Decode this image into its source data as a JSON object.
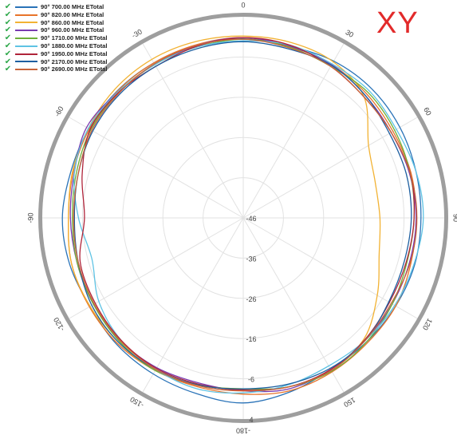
{
  "plane_label": "XY",
  "colors": {
    "grid": "#e2e2e2",
    "rim": "#9e9e9e",
    "tick_text": "#444444",
    "check": "#2ea84a",
    "plane_label": "#e22a2a"
  },
  "legend": [
    {
      "check_icon": "checkmark-icon",
      "label": "90° 700.00 MHz ETotal",
      "color": "#2a73b8"
    },
    {
      "check_icon": "checkmark-icon",
      "label": "90° 820.00 MHz ETotal",
      "color": "#e8742a"
    },
    {
      "check_icon": "checkmark-icon",
      "label": "90° 860.00 MHz ETotal",
      "color": "#f2b233"
    },
    {
      "check_icon": "checkmark-icon",
      "label": "90° 960.00 MHz ETotal",
      "color": "#7a3bb0"
    },
    {
      "check_icon": "checkmark-icon",
      "label": "90° 1710.00 MHz ETotal",
      "color": "#6fb03a"
    },
    {
      "check_icon": "checkmark-icon",
      "label": "90° 1880.00 MHz ETotal",
      "color": "#5fc3e4"
    },
    {
      "check_icon": "checkmark-icon",
      "label": "90° 1950.00 MHz ETotal",
      "color": "#b0243a"
    },
    {
      "check_icon": "checkmark-icon",
      "label": "90° 2170.00 MHz ETotal",
      "color": "#1e5fa0"
    },
    {
      "check_icon": "checkmark-icon",
      "label": "90° 2690.00 MHz ETotal",
      "color": "#c8643a"
    }
  ],
  "chart_data": {
    "type": "polar-line",
    "radial_axis": {
      "range": [
        -46,
        4
      ],
      "ticks": [
        "-46",
        "-36",
        "-26",
        "-16",
        "-6",
        "4"
      ]
    },
    "angular_axis": {
      "ticks": [
        "0",
        "30",
        "60",
        "90",
        "120",
        "150",
        "-180",
        "-150",
        "-120",
        "-90",
        "-60",
        "-30"
      ],
      "ticks_deg": [
        0,
        30,
        60,
        90,
        120,
        150,
        180,
        210,
        240,
        270,
        300,
        330
      ]
    },
    "grid": true,
    "series": [
      {
        "name": "90° 700.00 MHz ETotal",
        "color": "#2a73b8",
        "theta": [
          0,
          15,
          30,
          45,
          60,
          75,
          90,
          105,
          120,
          135,
          150,
          165,
          180,
          195,
          210,
          225,
          240,
          255,
          270,
          285,
          300,
          315,
          330,
          345
        ],
        "r": [
          -1.5,
          -1.8,
          -1.0,
          -0.7,
          -1.0,
          -1.5,
          -1.8,
          -1.8,
          -2.2,
          -2.5,
          -2.5,
          -1.2,
          0.0,
          -0.8,
          -1.2,
          -1.5,
          -2.0,
          -1.3,
          -1.0,
          -1.6,
          -1.6,
          -1.5,
          -1.5,
          -1.5
        ]
      },
      {
        "name": "90° 820.00 MHz ETotal",
        "color": "#e8742a",
        "theta": [
          0,
          15,
          30,
          45,
          60,
          75,
          90,
          105,
          120,
          135,
          150,
          165,
          180,
          195,
          210,
          225,
          240,
          255,
          270,
          285,
          300,
          315,
          330,
          345
        ],
        "r": [
          -1.2,
          -1.8,
          -2.0,
          -2.5,
          -3.0,
          -2.8,
          -3.0,
          -2.8,
          -2.2,
          -2.2,
          -1.8,
          -1.5,
          -2.2,
          -2.5,
          -2.2,
          -1.8,
          -1.8,
          -1.8,
          -2.5,
          -2.2,
          -1.8,
          -1.6,
          -1.5,
          -1.4
        ]
      },
      {
        "name": "90° 860.00 MHz ETotal",
        "color": "#f2b233",
        "theta": [
          0,
          15,
          30,
          45,
          60,
          75,
          90,
          105,
          120,
          135,
          150,
          165,
          180,
          195,
          210,
          225,
          240,
          255,
          270,
          285,
          300,
          315,
          330,
          345
        ],
        "r": [
          -0.8,
          -0.8,
          -1.2,
          -3.5,
          -10.0,
          -12.0,
          -12.0,
          -11.0,
          -7.5,
          -3.5,
          -2.5,
          -2.5,
          -3.5,
          -3.0,
          -2.2,
          -2.2,
          -2.0,
          -1.8,
          -2.5,
          -2.0,
          -1.5,
          -0.8,
          -0.5,
          -0.6
        ]
      },
      {
        "name": "90° 960.00 MHz ETotal",
        "color": "#7a3bb0",
        "theta": [
          0,
          15,
          30,
          45,
          60,
          75,
          90,
          105,
          120,
          135,
          150,
          165,
          180,
          195,
          210,
          225,
          240,
          255,
          270,
          285,
          300,
          315,
          330,
          345
        ],
        "r": [
          -1.2,
          -1.8,
          -2.0,
          -3.0,
          -3.5,
          -3.2,
          -3.0,
          -3.2,
          -3.2,
          -3.0,
          -2.5,
          -2.0,
          -3.0,
          -3.5,
          -3.0,
          -2.8,
          -3.0,
          -3.2,
          -3.0,
          -2.5,
          -1.0,
          -1.8,
          -2.0,
          -1.6
        ]
      },
      {
        "name": "90° 1710.00 MHz ETotal",
        "color": "#6fb03a",
        "theta": [
          0,
          15,
          30,
          45,
          60,
          75,
          90,
          105,
          120,
          135,
          150,
          165,
          180,
          195,
          210,
          225,
          240,
          255,
          270,
          285,
          300,
          315,
          330,
          345
        ],
        "r": [
          -1.6,
          -2.0,
          -2.5,
          -2.0,
          -2.5,
          -3.0,
          -3.5,
          -3.8,
          -3.2,
          -2.5,
          -2.0,
          -2.5,
          -3.5,
          -3.0,
          -2.2,
          -2.5,
          -3.0,
          -3.2,
          -3.5,
          -3.0,
          -2.2,
          -2.0,
          -2.0,
          -2.0
        ]
      },
      {
        "name": "90° 1880.00 MHz ETotal",
        "color": "#5fc3e4",
        "theta": [
          0,
          15,
          30,
          45,
          60,
          75,
          90,
          105,
          120,
          135,
          150,
          165,
          180,
          195,
          210,
          225,
          240,
          255,
          270,
          285,
          300,
          315,
          330,
          345
        ],
        "r": [
          -2.0,
          -1.5,
          -1.8,
          -1.5,
          -2.0,
          -1.5,
          -1.2,
          -2.0,
          -2.5,
          -3.0,
          -3.5,
          -3.0,
          -2.5,
          -2.0,
          -2.5,
          -3.0,
          -4.5,
          -7.0,
          -5.0,
          -2.5,
          -1.5,
          -1.8,
          -2.0,
          -2.0
        ]
      },
      {
        "name": "90° 1950.00 MHz ETotal",
        "color": "#b0243a",
        "theta": [
          0,
          15,
          30,
          45,
          60,
          75,
          90,
          105,
          120,
          135,
          150,
          165,
          180,
          195,
          210,
          225,
          240,
          255,
          270,
          285,
          300,
          315,
          330,
          345
        ],
        "r": [
          -1.2,
          -1.5,
          -2.5,
          -3.5,
          -3.5,
          -3.0,
          -3.5,
          -4.0,
          -4.0,
          -3.2,
          -2.5,
          -2.5,
          -3.2,
          -3.2,
          -2.8,
          -3.0,
          -3.5,
          -4.0,
          -6.5,
          -4.5,
          -2.0,
          -2.0,
          -2.5,
          -1.8
        ]
      },
      {
        "name": "90° 2170.00 MHz ETotal",
        "color": "#1e5fa0",
        "theta": [
          0,
          15,
          30,
          45,
          60,
          75,
          90,
          105,
          120,
          135,
          150,
          165,
          180,
          195,
          210,
          225,
          240,
          255,
          270,
          285,
          300,
          315,
          330,
          345
        ],
        "r": [
          -2.2,
          -2.5,
          -2.2,
          -3.0,
          -4.0,
          -4.0,
          -4.2,
          -4.5,
          -4.2,
          -3.0,
          -2.8,
          -3.2,
          -3.5,
          -3.0,
          -2.5,
          -2.2,
          -2.5,
          -3.5,
          -4.0,
          -3.5,
          -2.8,
          -2.5,
          -2.5,
          -2.4
        ]
      },
      {
        "name": "90° 2690.00 MHz ETotal",
        "color": "#c8643a",
        "theta": [
          0,
          15,
          30,
          45,
          60,
          75,
          90,
          105,
          120,
          135,
          150,
          165,
          180,
          195,
          210,
          225,
          240,
          255,
          270,
          285,
          300,
          315,
          330,
          345
        ],
        "r": [
          -1.6,
          -2.2,
          -2.5,
          -3.5,
          -3.5,
          -3.0,
          -2.8,
          -3.0,
          -3.5,
          -3.0,
          -2.2,
          -2.5,
          -3.0,
          -2.8,
          -2.5,
          -2.8,
          -3.2,
          -3.5,
          -3.8,
          -3.5,
          -2.5,
          -2.2,
          -1.8,
          -1.6
        ]
      }
    ]
  }
}
